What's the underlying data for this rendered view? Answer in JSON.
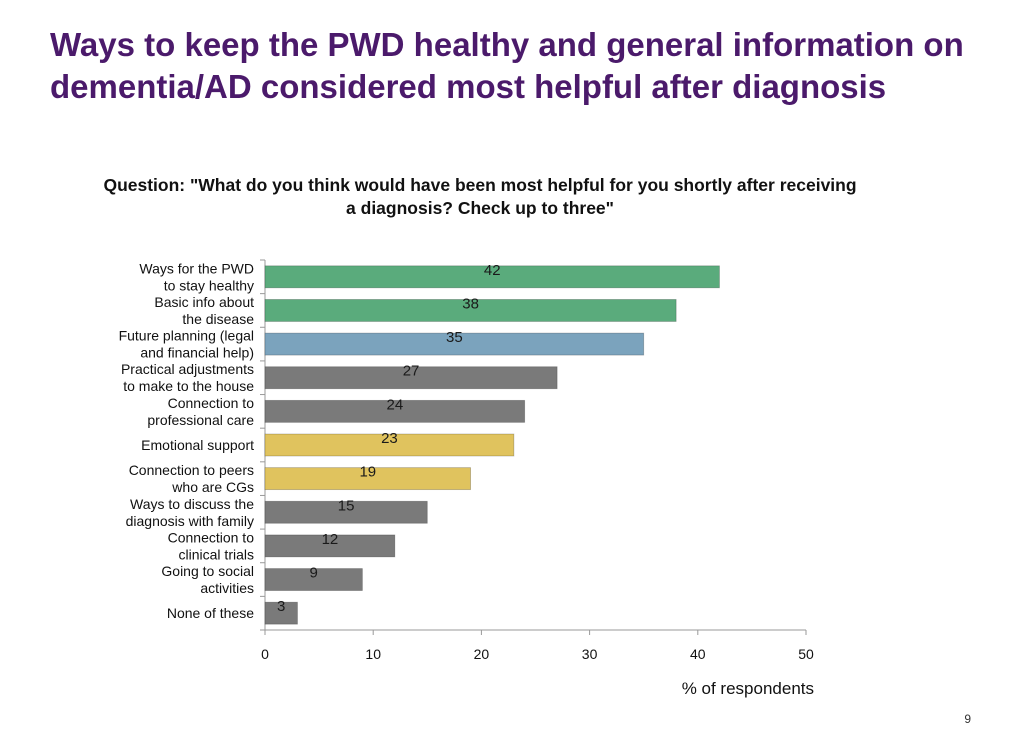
{
  "slide": {
    "title": "Ways to keep the PWD healthy and general information on dementia/AD considered most helpful after diagnosis",
    "page_number": "9"
  },
  "chart_data": {
    "type": "bar",
    "orientation": "horizontal",
    "title": "Question: \"What do you think would have been most helpful for you shortly after receiving a diagnosis? Check up to three\"",
    "xlabel": "% of respondents",
    "ylabel": "",
    "xlim": [
      0,
      50
    ],
    "xticks": [
      0,
      10,
      20,
      30,
      40,
      50
    ],
    "grid": false,
    "legend": "none",
    "categories": [
      [
        "Ways for the PWD",
        "to stay healthy"
      ],
      [
        "Basic info about",
        "the disease"
      ],
      [
        "Future planning (legal",
        "and financial help)"
      ],
      [
        "Practical adjustments",
        "to make to the house"
      ],
      [
        "Connection to",
        "professional care"
      ],
      [
        "Emotional support"
      ],
      [
        "Connection to peers",
        "who are CGs"
      ],
      [
        "Ways to discuss the",
        "diagnosis with family"
      ],
      [
        "Connection to",
        "clinical trials"
      ],
      [
        "Going to social",
        "activities"
      ],
      [
        "None of these"
      ]
    ],
    "values": [
      42,
      38,
      35,
      27,
      24,
      23,
      19,
      15,
      12,
      9,
      3
    ],
    "bar_colors": [
      "#5aab7c",
      "#5aab7c",
      "#7ba3bd",
      "#7a7a7a",
      "#7a7a7a",
      "#e0c35e",
      "#e0c35e",
      "#7a7a7a",
      "#7a7a7a",
      "#7a7a7a",
      "#7a7a7a"
    ]
  }
}
